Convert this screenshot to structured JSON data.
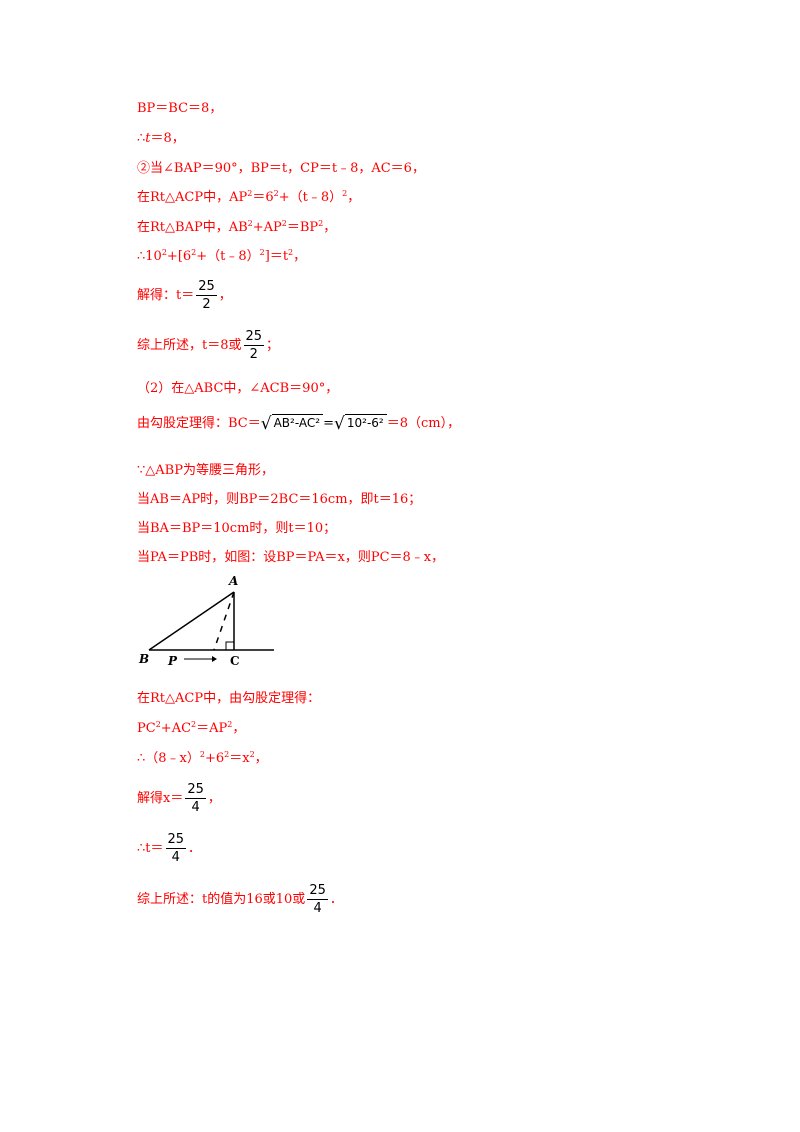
{
  "lines": {
    "l1": {
      "text": "BP＝BC＝8，"
    },
    "l2": {
      "pre": "∴",
      "var": "t",
      "post": "＝8，"
    },
    "l3": {
      "text": "②当∠BAP＝90°，BP＝t，CP＝t﹣8，AC＝6，"
    },
    "l4": {
      "pre": "在Rt△ACP中，AP",
      "sup1": "2",
      "mid": "＝6",
      "sup2": "2",
      "post": "+（t﹣8）",
      "sup3": "2",
      "end": "，"
    },
    "l5": {
      "pre": "在Rt△BAP中，AB",
      "sup1": "2",
      "mid": "+AP",
      "sup2": "2",
      "mid2": "＝BP",
      "sup3": "2",
      "end": "，"
    },
    "l6": {
      "pre": "∴10",
      "sup1": "2",
      "mid": "+[6",
      "sup2": "2",
      "post": "+（t﹣8）",
      "sup3": "2",
      "mid2": "]＝t",
      "sup4": "2",
      "end": "，"
    },
    "l7": {
      "pre": "解得：t＝",
      "num": "25",
      "den": "2",
      "post": "，"
    },
    "l8": {
      "pre": "综上所述，t＝8或",
      "num": "25",
      "den": "2",
      "post": "；"
    },
    "l9": {
      "text": "（2）在△ABC中，∠ACB＝90°，"
    },
    "l10": {
      "pre": "由勾股定理得：BC＝",
      "rad1": "AB²-AC²",
      "eq": "=",
      "rad2": "10²-6²",
      "post": "＝8（cm），"
    },
    "l11": {
      "text": "∵△ABP为等腰三角形，"
    },
    "l12": {
      "text": "当AB＝AP时，则BP＝2BC＝16cm，即t＝16；"
    },
    "l13": {
      "text": "当BA＝BP＝10cm时，则t＝10；"
    },
    "l14": {
      "text": "当PA＝PB时，如图：设BP＝PA＝x，则PC＝8﹣x，"
    },
    "l15": {
      "text": "在Rt△ACP中，由勾股定理得："
    },
    "l16": {
      "pre": "PC",
      "sup1": "2",
      "mid": "+AC",
      "sup2": "2",
      "post": "＝AP",
      "sup3": "2",
      "end": "，"
    },
    "l17": {
      "pre": "∴（8﹣x）",
      "sup1": "2",
      "mid": "+6",
      "sup2": "2",
      "post": "＝x",
      "sup3": "2",
      "end": "，"
    },
    "l18": {
      "pre": "解得x＝",
      "num": "25",
      "den": "4",
      "post": "，"
    },
    "l19": {
      "pre": "∴t＝",
      "num": "25",
      "den": "4",
      "post": "．"
    },
    "l20": {
      "pre": "综上所述：t的值为16或10或",
      "num": "25",
      "den": "4",
      "post": "．"
    }
  },
  "figure": {
    "label_a": "A",
    "label_b": "B",
    "label_p": "P",
    "label_c": "C"
  }
}
